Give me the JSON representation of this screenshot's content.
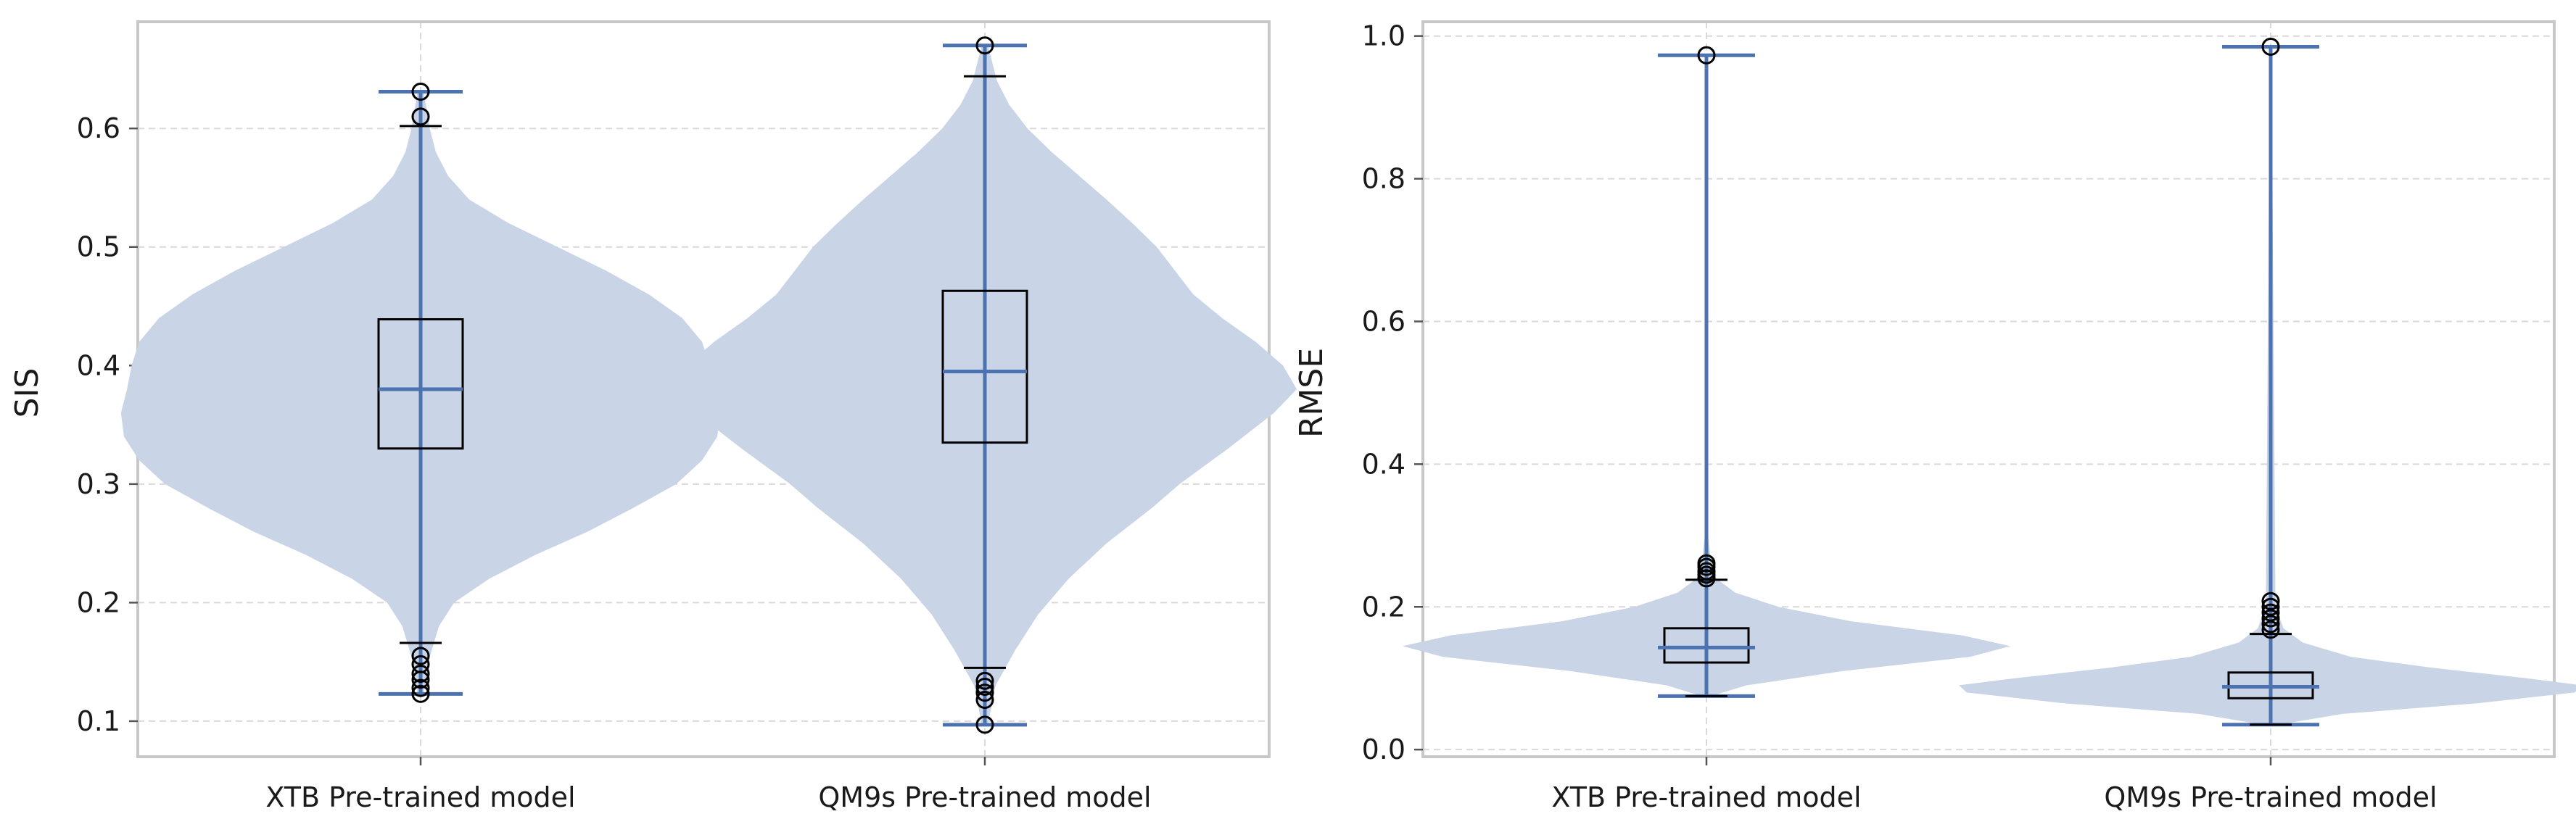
{
  "chart_data": [
    {
      "type": "violin",
      "title": "",
      "xlabel": "",
      "ylabel": "SIS",
      "ylim": [
        0.07,
        0.69
      ],
      "yticks": [
        0.1,
        0.2,
        0.3,
        0.4,
        0.5,
        0.6
      ],
      "ytick_labels": [
        "0.1",
        "0.2",
        "0.3",
        "0.4",
        "0.5",
        "0.6"
      ],
      "grid": true,
      "categories": [
        "XTB Pre-trained model",
        "QM9s Pre-trained model"
      ],
      "colors": {
        "violin": "#c9d4e7",
        "line": "#4c72b0",
        "box": "#000000"
      },
      "series": [
        {
          "category": "XTB Pre-trained model",
          "min": 0.123,
          "max": 0.631,
          "median": 0.38,
          "q1": 0.33,
          "q3": 0.439,
          "whisker_low": 0.166,
          "whisker_high": 0.602,
          "outliers": [
            0.123,
            0.128,
            0.135,
            0.14,
            0.148,
            0.155,
            0.61,
            0.631
          ],
          "density": [
            [
              0.123,
              0.002
            ],
            [
              0.15,
              0.005
            ],
            [
              0.18,
              0.012
            ],
            [
              0.2,
              0.022
            ],
            [
              0.22,
              0.045
            ],
            [
              0.24,
              0.075
            ],
            [
              0.26,
              0.11
            ],
            [
              0.28,
              0.14
            ],
            [
              0.3,
              0.168
            ],
            [
              0.32,
              0.185
            ],
            [
              0.34,
              0.195
            ],
            [
              0.36,
              0.197
            ],
            [
              0.38,
              0.193
            ],
            [
              0.4,
              0.19
            ],
            [
              0.42,
              0.185
            ],
            [
              0.44,
              0.172
            ],
            [
              0.46,
              0.15
            ],
            [
              0.48,
              0.122
            ],
            [
              0.5,
              0.09
            ],
            [
              0.52,
              0.058
            ],
            [
              0.54,
              0.032
            ],
            [
              0.56,
              0.018
            ],
            [
              0.58,
              0.01
            ],
            [
              0.6,
              0.006
            ],
            [
              0.631,
              0.002
            ]
          ]
        },
        {
          "category": "QM9s Pre-trained model",
          "min": 0.097,
          "max": 0.67,
          "median": 0.395,
          "q1": 0.335,
          "q3": 0.463,
          "whisker_low": 0.145,
          "whisker_high": 0.644,
          "outliers": [
            0.097,
            0.118,
            0.124,
            0.129,
            0.134,
            0.67
          ],
          "density": [
            [
              0.097,
              0.002
            ],
            [
              0.13,
              0.007
            ],
            [
              0.16,
              0.02
            ],
            [
              0.19,
              0.035
            ],
            [
              0.22,
              0.055
            ],
            [
              0.25,
              0.08
            ],
            [
              0.28,
              0.11
            ],
            [
              0.3,
              0.128
            ],
            [
              0.33,
              0.16
            ],
            [
              0.36,
              0.19
            ],
            [
              0.38,
              0.205
            ],
            [
              0.4,
              0.196
            ],
            [
              0.42,
              0.178
            ],
            [
              0.44,
              0.156
            ],
            [
              0.46,
              0.137
            ],
            [
              0.48,
              0.125
            ],
            [
              0.5,
              0.113
            ],
            [
              0.52,
              0.097
            ],
            [
              0.54,
              0.08
            ],
            [
              0.56,
              0.062
            ],
            [
              0.58,
              0.044
            ],
            [
              0.6,
              0.028
            ],
            [
              0.62,
              0.016
            ],
            [
              0.64,
              0.008
            ],
            [
              0.67,
              0.002
            ]
          ]
        }
      ]
    },
    {
      "type": "violin",
      "title": "",
      "xlabel": "",
      "ylabel": "RMSE",
      "ylim": [
        -0.01,
        1.02
      ],
      "yticks": [
        0.0,
        0.2,
        0.4,
        0.6,
        0.8,
        1.0
      ],
      "ytick_labels": [
        "0.0",
        "0.2",
        "0.4",
        "0.6",
        "0.8",
        "1.0"
      ],
      "grid": true,
      "categories": [
        "XTB Pre-trained model",
        "QM9s Pre-trained model"
      ],
      "colors": {
        "violin": "#c9d4e7",
        "line": "#4c72b0",
        "box": "#000000"
      },
      "series": [
        {
          "category": "XTB Pre-trained model",
          "min": 0.075,
          "max": 0.973,
          "median": 0.143,
          "q1": 0.122,
          "q3": 0.17,
          "whisker_low": 0.075,
          "whisker_high": 0.238,
          "outliers": [
            0.24,
            0.245,
            0.25,
            0.256,
            0.261,
            0.973
          ],
          "density": [
            [
              0.075,
              0.003
            ],
            [
              0.09,
              0.025
            ],
            [
              0.11,
              0.085
            ],
            [
              0.13,
              0.165
            ],
            [
              0.145,
              0.19
            ],
            [
              0.16,
              0.16
            ],
            [
              0.18,
              0.09
            ],
            [
              0.2,
              0.045
            ],
            [
              0.22,
              0.018
            ],
            [
              0.24,
              0.006
            ],
            [
              0.26,
              0.003
            ],
            [
              0.3,
              0.001
            ],
            [
              0.973,
              0.0005
            ]
          ]
        },
        {
          "category": "QM9s Pre-trained model",
          "min": 0.035,
          "max": 0.985,
          "median": 0.088,
          "q1": 0.072,
          "q3": 0.108,
          "whisker_low": 0.035,
          "whisker_high": 0.162,
          "outliers": [
            0.168,
            0.176,
            0.184,
            0.192,
            0.2,
            0.208,
            0.985
          ],
          "density": [
            [
              0.035,
              0.005
            ],
            [
              0.05,
              0.045
            ],
            [
              0.065,
              0.13
            ],
            [
              0.08,
              0.19
            ],
            [
              0.09,
              0.195
            ],
            [
              0.1,
              0.16
            ],
            [
              0.115,
              0.1
            ],
            [
              0.13,
              0.05
            ],
            [
              0.15,
              0.02
            ],
            [
              0.17,
              0.008
            ],
            [
              0.2,
              0.003
            ],
            [
              0.985,
              0.0005
            ]
          ]
        }
      ]
    }
  ]
}
